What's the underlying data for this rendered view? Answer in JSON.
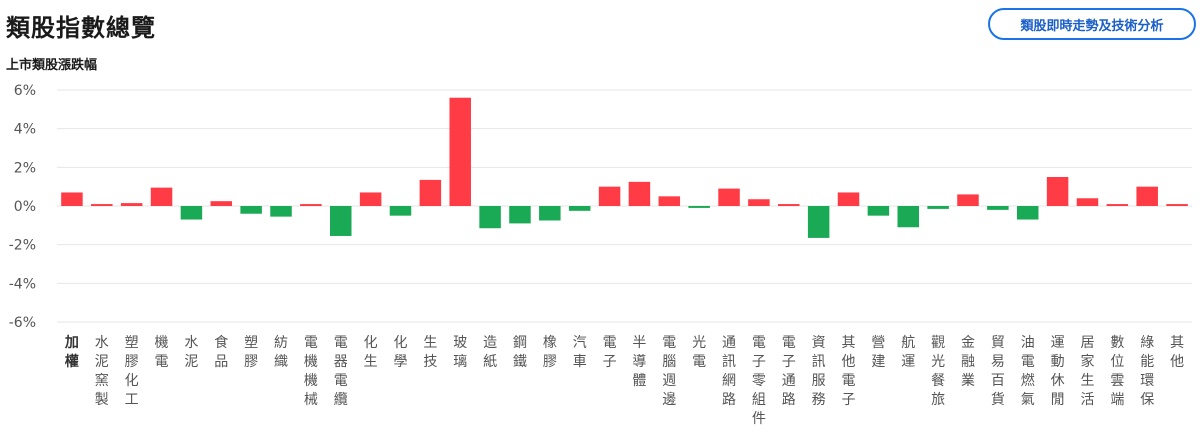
{
  "header": {
    "title": "類股指數總覽",
    "analysis_button_label": "類股即時走勢及技術分析"
  },
  "colors": {
    "up": "#ff3b45",
    "down": "#1aaa55",
    "grid": "#e6e6e6",
    "button_border": "#1a73e8"
  },
  "chart_data": {
    "type": "bar",
    "title": "上市類股漲跌幅",
    "ylim": [
      -6,
      6
    ],
    "yticks": [
      6,
      4,
      2,
      0,
      -2,
      -4,
      -6
    ],
    "ytick_labels": [
      "6%",
      "4%",
      "2%",
      "0%",
      "-2%",
      "-4%",
      "-6%"
    ],
    "grid": true,
    "categories": [
      "加權",
      "水泥窯製",
      "塑膠化工",
      "機電",
      "水泥",
      "食品",
      "塑膠",
      "紡織",
      "電機機械",
      "電器電纜",
      "化生",
      "化學",
      "生技",
      "玻璃",
      "造紙",
      "鋼鐵",
      "橡膠",
      "汽車",
      "電子",
      "半導體",
      "電腦週邊",
      "光電",
      "通訊網路",
      "電子零組件",
      "電子通路",
      "資訊服務",
      "其他電子",
      "營建",
      "航運",
      "觀光餐旅",
      "金融業",
      "貿易百貨",
      "油電燃氣",
      "運動休閒",
      "居家生活",
      "數位雲端",
      "綠能環保",
      "其他"
    ],
    "values": [
      0.7,
      0.1,
      0.15,
      0.95,
      -0.7,
      0.25,
      -0.4,
      -0.55,
      0.1,
      -1.55,
      0.7,
      -0.5,
      1.35,
      5.6,
      -1.15,
      -0.9,
      -0.75,
      -0.25,
      1.0,
      1.25,
      0.5,
      -0.1,
      0.9,
      0.35,
      0.1,
      -1.65,
      0.7,
      -0.5,
      -1.1,
      -0.15,
      0.6,
      -0.2,
      -0.7,
      1.5,
      0.4,
      0.1,
      1.0,
      0.1
    ]
  }
}
